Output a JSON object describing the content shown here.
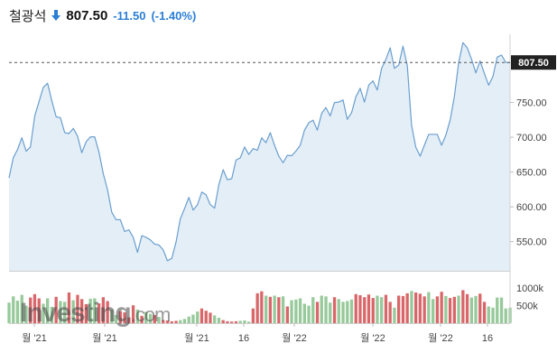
{
  "header": {
    "title": "철광석",
    "price": "807.50",
    "change": "-11.50",
    "pct": "(-1.40%)",
    "direction_icon": "arrow-down-icon"
  },
  "colors": {
    "line": "#6a9fcf",
    "area": "#e4eef7",
    "up": "#97c99a",
    "down": "#d9676a",
    "accent": "#2a7fd4",
    "price_tag": "#222222"
  },
  "watermark": {
    "brand": "Investing",
    "suffix": ".com"
  },
  "chart_data": {
    "type": "area",
    "grid": false,
    "ylim": [
      508,
      848
    ],
    "y_ticks": [
      "550.00",
      "600.00",
      "650.00",
      "700.00",
      "750.00"
    ],
    "last_price_label": "807.50",
    "last_price": 807.5,
    "x_tick_labels": [
      "월 '21",
      "월 '21",
      "월 '21",
      "16",
      "월 '22",
      "월 '22",
      "월 '22",
      "16"
    ],
    "price": [
      641.6,
      670.5,
      682.5,
      699.3,
      680.1,
      686.1,
      730.7,
      751.1,
      771.6,
      777.6,
      752.3,
      729.4,
      728.2,
      706.6,
      705.4,
      712.6,
      701.8,
      677.7,
      693.4,
      700.6,
      700.6,
      678.9,
      647.6,
      624.7,
      592.2,
      581.4,
      581.4,
      564.5,
      567.0,
      556.1,
      534.5,
      558.6,
      556.1,
      552.5,
      546.4,
      545.2,
      538.0,
      522.4,
      525.9,
      549.3,
      582.6,
      597.7,
      613.5,
      595.4,
      602.9,
      621.1,
      617.5,
      603.2,
      598.0,
      631.7,
      653.4,
      638.9,
      640.4,
      667.1,
      670.5,
      686.1,
      675.3,
      683.7,
      681.3,
      699.3,
      692.2,
      706.6,
      688.5,
      672.9,
      663.3,
      674.1,
      673.5,
      680.1,
      688.5,
      710.2,
      720.9,
      724.6,
      710.2,
      734.3,
      742.7,
      730.7,
      749.9,
      750.6,
      753.5,
      725.8,
      735.5,
      758.1,
      770.4,
      750.6,
      775.1,
      781.1,
      767.9,
      799.1,
      811.6,
      828.5,
      799.1,
      803.9,
      831.0,
      802.7,
      717.3,
      685.6,
      672.9,
      688.5,
      704.2,
      704.2,
      704.2,
      688.5,
      702.8,
      724.6,
      758.3,
      807.5,
      836.1,
      828.5,
      812.2,
      792.6,
      809.8,
      791.9,
      774.8,
      787.4,
      815.2,
      818.2,
      807.5,
      807.5
    ],
    "volume": [
      0.53,
      0.69,
      0.58,
      0.73,
      0.45,
      0.66,
      0.75,
      0.64,
      0.5,
      0.64,
      0.42,
      0.68,
      0.57,
      0.55,
      0.79,
      0.59,
      0.73,
      0.62,
      0.49,
      0.63,
      0.64,
      0.51,
      0.67,
      0.57,
      0.35,
      0.21,
      0.31,
      0.28,
      0.15,
      0.46,
      0.35,
      0.19,
      0.29,
      0.24,
      0.21,
      0.16,
      0.08,
      0.07,
      0.05,
      0.06,
      0.08,
      0.11,
      0.17,
      0.22,
      0.3,
      0.38,
      0.32,
      0.27,
      0.2,
      0.14,
      0.08,
      0.05,
      0.04,
      0.05,
      0.06,
      0.07,
      0.04,
      0.38,
      0.77,
      0.82,
      0.71,
      0.68,
      0.71,
      0.67,
      0.69,
      0.43,
      0.59,
      0.61,
      0.64,
      0.5,
      0.45,
      0.67,
      0.55,
      0.71,
      0.69,
      0.53,
      0.67,
      0.62,
      0.55,
      0.57,
      0.61,
      0.75,
      0.72,
      0.67,
      0.74,
      0.65,
      0.71,
      0.67,
      0.73,
      0.55,
      0.4,
      0.71,
      0.7,
      0.77,
      0.83,
      0.79,
      0.76,
      0.69,
      0.8,
      0.62,
      0.69,
      0.81,
      0.7,
      0.65,
      0.68,
      0.71,
      0.85,
      0.75,
      0.66,
      0.7,
      0.76,
      0.55,
      0.43,
      0.4,
      0.66,
      0.66,
      0.38,
      0.4
    ],
    "volume_colors": [
      "up",
      "up",
      "up",
      "up",
      "up",
      "down",
      "down",
      "down",
      "up",
      "up",
      "up",
      "down",
      "up",
      "up",
      "down",
      "up",
      "down",
      "down",
      "down",
      "up",
      "up",
      "down",
      "down",
      "down",
      "up",
      "up",
      "down",
      "down",
      "down",
      "down",
      "up",
      "down",
      "up",
      "up",
      "down",
      "up",
      "down",
      "down",
      "down",
      "down",
      "up",
      "up",
      "up",
      "up",
      "up",
      "down",
      "down",
      "down",
      "up",
      "up",
      "down",
      "down",
      "down",
      "down",
      "up",
      "up",
      "up",
      "down",
      "down",
      "down",
      "up",
      "down",
      "up",
      "down",
      "up",
      "down",
      "up",
      "up",
      "up",
      "up",
      "up",
      "up",
      "down",
      "up",
      "up",
      "up",
      "down",
      "up",
      "up",
      "up",
      "up",
      "down",
      "down",
      "down",
      "down",
      "down",
      "up",
      "up",
      "down",
      "down",
      "up",
      "down",
      "down",
      "down",
      "up",
      "down",
      "down",
      "down",
      "up",
      "up",
      "down",
      "down",
      "up",
      "down",
      "down",
      "up",
      "down",
      "down",
      "up",
      "up",
      "down",
      "down",
      "up",
      "up",
      "up",
      "up",
      "up",
      "up"
    ],
    "volume_max": 1100000,
    "volume_ticks": [
      "1000k",
      "500k"
    ]
  }
}
